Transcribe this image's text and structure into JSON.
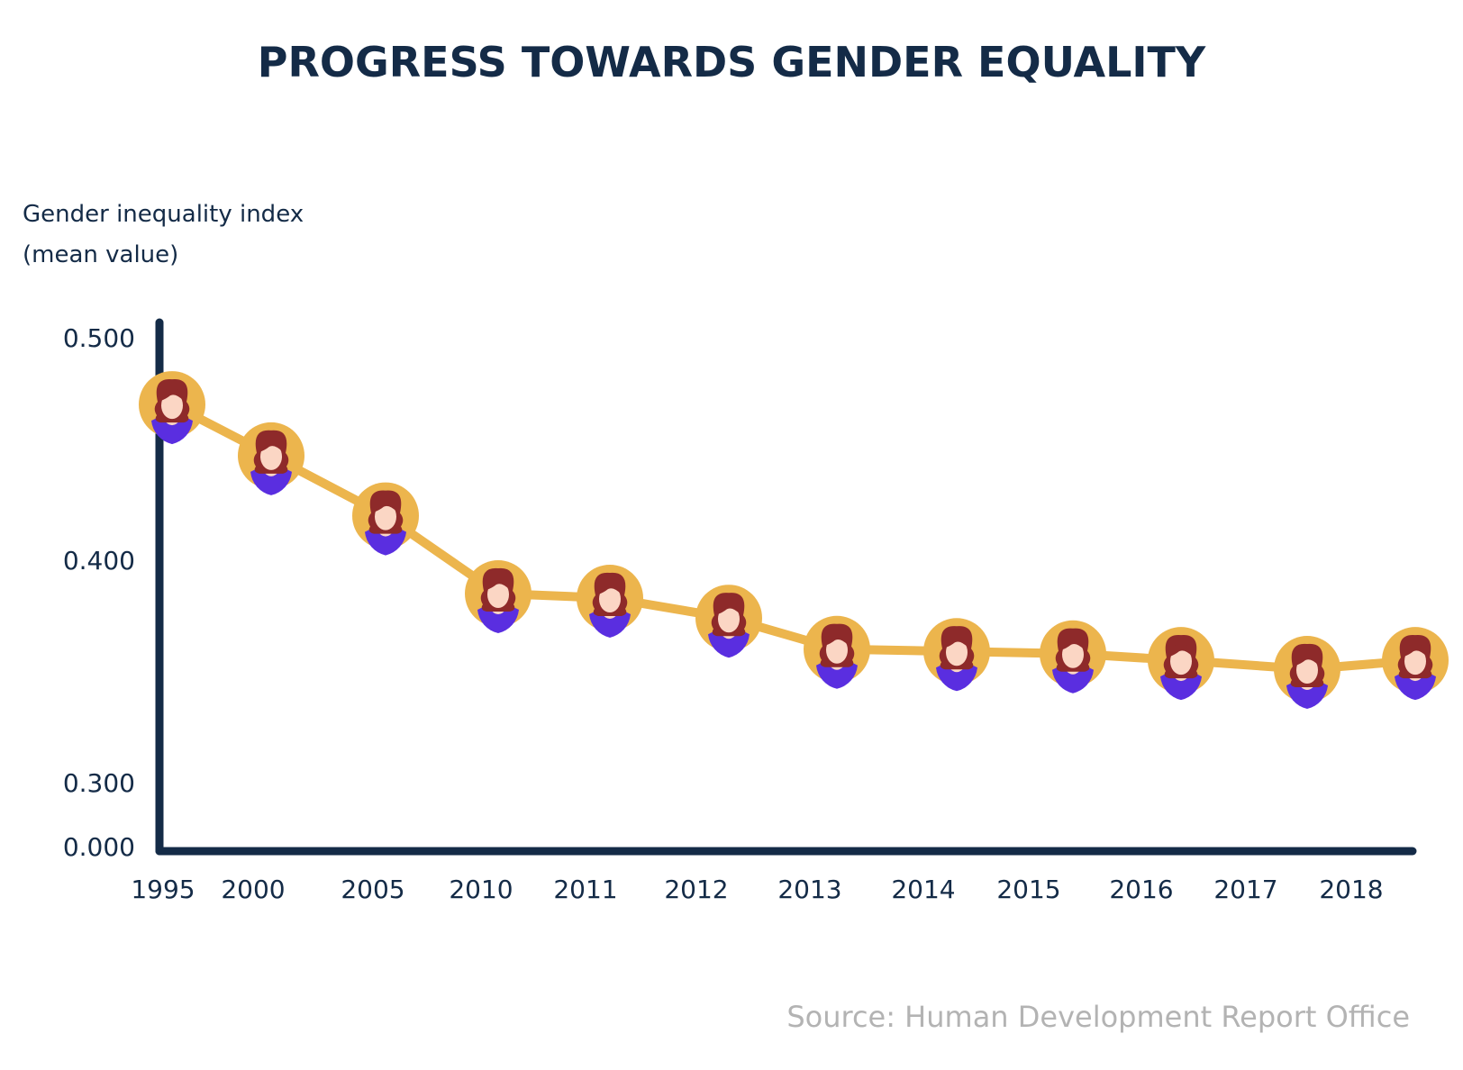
{
  "chart_data": {
    "type": "line",
    "title": "PROGRESS TOWARDS GENDER EQUALITY",
    "ylabel_lines": [
      "Gender inequality index",
      "(mean value)"
    ],
    "ytick_labels": [
      "0.500",
      "0.400",
      "0.300",
      "0.000"
    ],
    "ytick_values": [
      0.5,
      0.4,
      0.3,
      0.0
    ],
    "categories": [
      "1995",
      "2000",
      "2005",
      "2010",
      "2011",
      "2012",
      "2013",
      "2014",
      "2015",
      "2016",
      "2017",
      "2018"
    ],
    "series": [
      {
        "name": "Gender inequality index",
        "values": [
          0.47,
          0.447,
          0.42,
          0.385,
          0.383,
          0.374,
          0.36,
          0.359,
          0.358,
          0.355,
          0.351,
          0.355
        ]
      }
    ],
    "axis_break": "between 0.000 and 0.300",
    "marker": "woman-avatar-icon",
    "source": "Source: Human Development Report Office",
    "colors": {
      "title": "#142b47",
      "axis": "#142b47",
      "line": "#ecb54d",
      "marker_ring": "#ecb54d",
      "hair": "#8e2a2a",
      "skin": "#fbd6c4",
      "shirt": "#5a2ee0",
      "source": "#b3b3b3"
    }
  }
}
